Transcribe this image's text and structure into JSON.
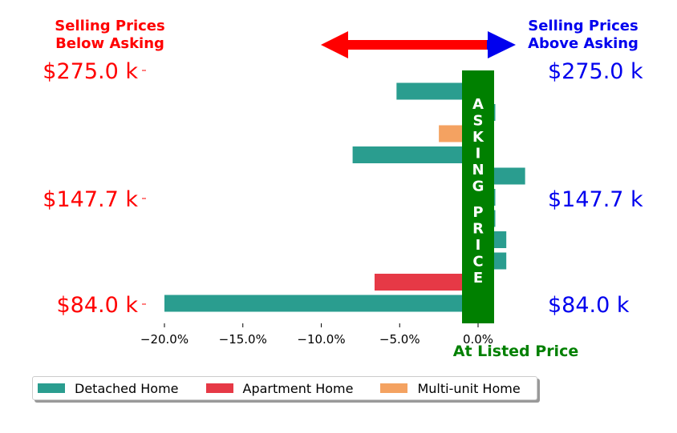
{
  "header": {
    "below_line1": "Selling Prices",
    "below_line2": "Below Asking",
    "above_line1": "Selling Prices",
    "above_line2": "Above Asking"
  },
  "colors": {
    "below": "#ff0000",
    "above": "#0000ee",
    "asking": "#008000",
    "detached": "#2a9d8f",
    "apartment": "#e63946",
    "multiunit": "#f4a261"
  },
  "asking_label": "ASKING PRICE",
  "at_listed_label": "At Listed Price",
  "chart_data": {
    "type": "bar",
    "orientation": "horizontal",
    "xlim": [
      -0.21,
      0.0135
    ],
    "x_ticks": [
      -0.2,
      -0.15,
      -0.1,
      -0.05,
      0.0
    ],
    "x_tick_labels": [
      "−20.0%",
      "−15.0%",
      "−10.0%",
      "−5.0%",
      "0.0%"
    ],
    "y_tick_labels": [
      "$275.0 k",
      "$147.7 k",
      "$84.0 k"
    ],
    "y_tick_rows": [
      0,
      6,
      11
    ],
    "series": [
      {
        "name": "Detached Home",
        "color": "#2a9d8f"
      },
      {
        "name": "Apartment Home",
        "color": "#e63946"
      },
      {
        "name": "Multi-unit Home",
        "color": "#f4a261"
      }
    ],
    "bars": [
      {
        "row": 0,
        "series": 0,
        "value": -0.052
      },
      {
        "row": 1,
        "series": 0,
        "value": 0.011
      },
      {
        "row": 2,
        "series": 2,
        "value": -0.025
      },
      {
        "row": 3,
        "series": 0,
        "value": -0.08
      },
      {
        "row": 4,
        "series": 0,
        "value": 0.03
      },
      {
        "row": 5,
        "series": 0,
        "value": 0.011
      },
      {
        "row": 6,
        "series": 0,
        "value": 0.011
      },
      {
        "row": 7,
        "series": 0,
        "value": 0.018
      },
      {
        "row": 8,
        "series": 0,
        "value": 0.018
      },
      {
        "row": 9,
        "series": 1,
        "value": -0.066
      },
      {
        "row": 10,
        "series": 0,
        "value": -0.2
      }
    ]
  },
  "legend": [
    {
      "label": "Detached Home",
      "color": "#2a9d8f"
    },
    {
      "label": "Apartment Home",
      "color": "#e63946"
    },
    {
      "label": "Multi-unit Home",
      "color": "#f4a261"
    }
  ]
}
